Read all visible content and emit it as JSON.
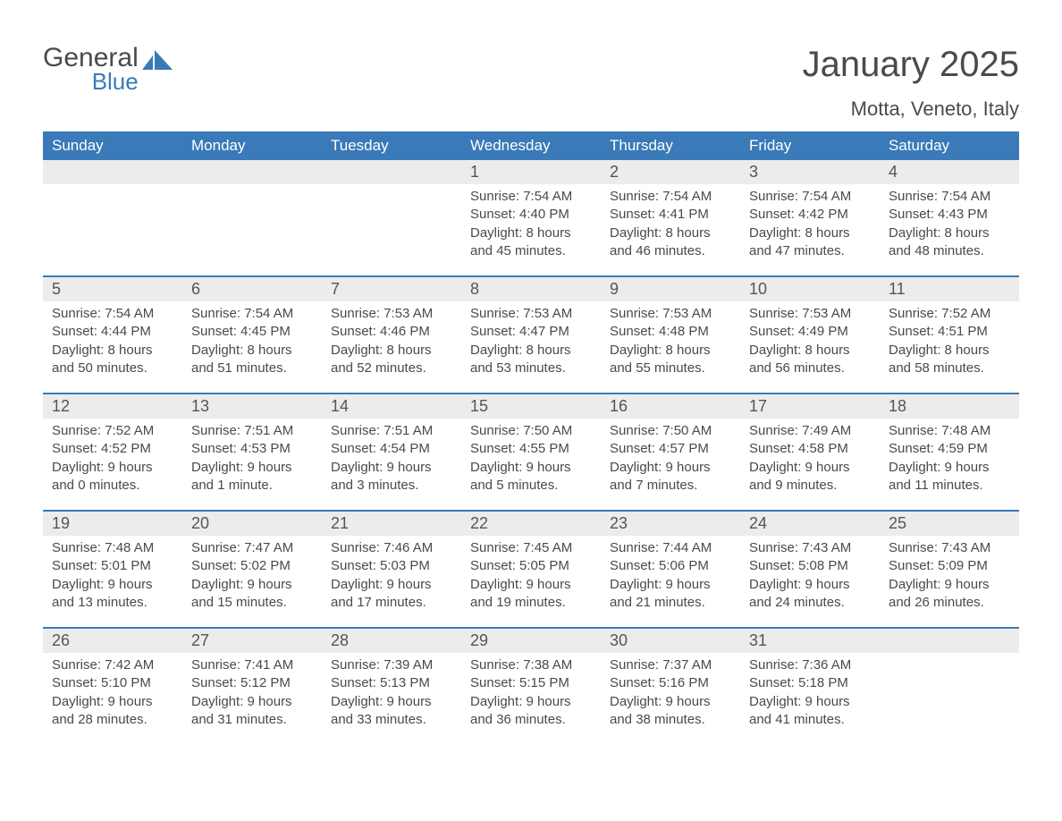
{
  "logo": {
    "general": "General",
    "blue": "Blue"
  },
  "colors": {
    "header_bg": "#3a7ab8",
    "header_text": "#ffffff",
    "daynum_bg": "#ececec",
    "text": "#4a4a4a",
    "accent": "#3a7ab8",
    "page_bg": "#ffffff"
  },
  "title": "January 2025",
  "location": "Motta, Veneto, Italy",
  "days_of_week": [
    "Sunday",
    "Monday",
    "Tuesday",
    "Wednesday",
    "Thursday",
    "Friday",
    "Saturday"
  ],
  "weeks": [
    [
      {
        "num": "",
        "text": ""
      },
      {
        "num": "",
        "text": ""
      },
      {
        "num": "",
        "text": ""
      },
      {
        "num": "1",
        "text": "Sunrise: 7:54 AM\nSunset: 4:40 PM\nDaylight: 8 hours and 45 minutes."
      },
      {
        "num": "2",
        "text": "Sunrise: 7:54 AM\nSunset: 4:41 PM\nDaylight: 8 hours and 46 minutes."
      },
      {
        "num": "3",
        "text": "Sunrise: 7:54 AM\nSunset: 4:42 PM\nDaylight: 8 hours and 47 minutes."
      },
      {
        "num": "4",
        "text": "Sunrise: 7:54 AM\nSunset: 4:43 PM\nDaylight: 8 hours and 48 minutes."
      }
    ],
    [
      {
        "num": "5",
        "text": "Sunrise: 7:54 AM\nSunset: 4:44 PM\nDaylight: 8 hours and 50 minutes."
      },
      {
        "num": "6",
        "text": "Sunrise: 7:54 AM\nSunset: 4:45 PM\nDaylight: 8 hours and 51 minutes."
      },
      {
        "num": "7",
        "text": "Sunrise: 7:53 AM\nSunset: 4:46 PM\nDaylight: 8 hours and 52 minutes."
      },
      {
        "num": "8",
        "text": "Sunrise: 7:53 AM\nSunset: 4:47 PM\nDaylight: 8 hours and 53 minutes."
      },
      {
        "num": "9",
        "text": "Sunrise: 7:53 AM\nSunset: 4:48 PM\nDaylight: 8 hours and 55 minutes."
      },
      {
        "num": "10",
        "text": "Sunrise: 7:53 AM\nSunset: 4:49 PM\nDaylight: 8 hours and 56 minutes."
      },
      {
        "num": "11",
        "text": "Sunrise: 7:52 AM\nSunset: 4:51 PM\nDaylight: 8 hours and 58 minutes."
      }
    ],
    [
      {
        "num": "12",
        "text": "Sunrise: 7:52 AM\nSunset: 4:52 PM\nDaylight: 9 hours and 0 minutes."
      },
      {
        "num": "13",
        "text": "Sunrise: 7:51 AM\nSunset: 4:53 PM\nDaylight: 9 hours and 1 minute."
      },
      {
        "num": "14",
        "text": "Sunrise: 7:51 AM\nSunset: 4:54 PM\nDaylight: 9 hours and 3 minutes."
      },
      {
        "num": "15",
        "text": "Sunrise: 7:50 AM\nSunset: 4:55 PM\nDaylight: 9 hours and 5 minutes."
      },
      {
        "num": "16",
        "text": "Sunrise: 7:50 AM\nSunset: 4:57 PM\nDaylight: 9 hours and 7 minutes."
      },
      {
        "num": "17",
        "text": "Sunrise: 7:49 AM\nSunset: 4:58 PM\nDaylight: 9 hours and 9 minutes."
      },
      {
        "num": "18",
        "text": "Sunrise: 7:48 AM\nSunset: 4:59 PM\nDaylight: 9 hours and 11 minutes."
      }
    ],
    [
      {
        "num": "19",
        "text": "Sunrise: 7:48 AM\nSunset: 5:01 PM\nDaylight: 9 hours and 13 minutes."
      },
      {
        "num": "20",
        "text": "Sunrise: 7:47 AM\nSunset: 5:02 PM\nDaylight: 9 hours and 15 minutes."
      },
      {
        "num": "21",
        "text": "Sunrise: 7:46 AM\nSunset: 5:03 PM\nDaylight: 9 hours and 17 minutes."
      },
      {
        "num": "22",
        "text": "Sunrise: 7:45 AM\nSunset: 5:05 PM\nDaylight: 9 hours and 19 minutes."
      },
      {
        "num": "23",
        "text": "Sunrise: 7:44 AM\nSunset: 5:06 PM\nDaylight: 9 hours and 21 minutes."
      },
      {
        "num": "24",
        "text": "Sunrise: 7:43 AM\nSunset: 5:08 PM\nDaylight: 9 hours and 24 minutes."
      },
      {
        "num": "25",
        "text": "Sunrise: 7:43 AM\nSunset: 5:09 PM\nDaylight: 9 hours and 26 minutes."
      }
    ],
    [
      {
        "num": "26",
        "text": "Sunrise: 7:42 AM\nSunset: 5:10 PM\nDaylight: 9 hours and 28 minutes."
      },
      {
        "num": "27",
        "text": "Sunrise: 7:41 AM\nSunset: 5:12 PM\nDaylight: 9 hours and 31 minutes."
      },
      {
        "num": "28",
        "text": "Sunrise: 7:39 AM\nSunset: 5:13 PM\nDaylight: 9 hours and 33 minutes."
      },
      {
        "num": "29",
        "text": "Sunrise: 7:38 AM\nSunset: 5:15 PM\nDaylight: 9 hours and 36 minutes."
      },
      {
        "num": "30",
        "text": "Sunrise: 7:37 AM\nSunset: 5:16 PM\nDaylight: 9 hours and 38 minutes."
      },
      {
        "num": "31",
        "text": "Sunrise: 7:36 AM\nSunset: 5:18 PM\nDaylight: 9 hours and 41 minutes."
      },
      {
        "num": "",
        "text": ""
      }
    ]
  ]
}
